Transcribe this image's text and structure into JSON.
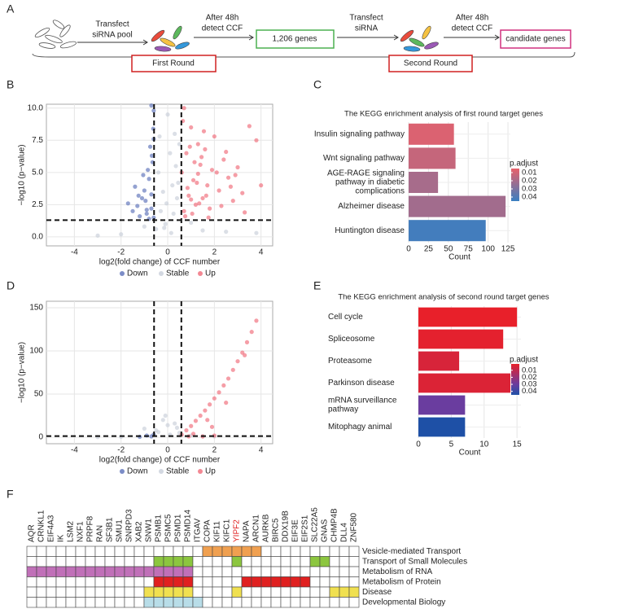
{
  "panel_labels": [
    "A",
    "B",
    "C",
    "D",
    "E",
    "F"
  ],
  "workflow": {
    "step1": [
      "Transfect",
      "siRNA pool"
    ],
    "step2": [
      "After 48h",
      "detect CCF"
    ],
    "genes_box": "1,206 genes",
    "step3": [
      "Transfect",
      "siRNA"
    ],
    "step4": [
      "After 48h",
      "detect CCF"
    ],
    "result_box": "candidate genes",
    "round1": "First Round",
    "round2": "Second Round"
  },
  "chart_data": [
    {
      "type": "scatter",
      "x_label": "log2(fold change) of CCF number",
      "y_label": "−log10 (p−value)",
      "xlim": [
        -5.2,
        4.5
      ],
      "ylim": [
        -0.7,
        10.3
      ],
      "xticks": [
        -4,
        -2,
        0,
        2,
        4
      ],
      "yticks": [
        {
          "value": 0,
          "label": "0.0"
        },
        2.5,
        {
          "value": 5,
          "label": "5.0"
        },
        7.5,
        {
          "value": 10,
          "label": "10.0"
        }
      ],
      "thresholds_x": [
        -0.585,
        0.585
      ],
      "threshold_y": 1.3,
      "grid": true,
      "series": [
        {
          "name": "Down",
          "color": "#5b70b9",
          "x": [
            -0.6,
            -0.7,
            -0.9,
            -1.1,
            -1.3,
            -0.8,
            -1.0,
            -1.5,
            -0.65,
            -0.75,
            -1.2,
            -0.95,
            -0.7,
            -1.4,
            -0.6,
            -0.85,
            -1.05,
            -0.62,
            -0.68,
            -0.9,
            -1.7,
            -0.7,
            -0.6,
            -0.8,
            -1.25
          ],
          "values": [
            1.5,
            2.2,
            1.8,
            3.0,
            2.4,
            4.5,
            3.6,
            2.0,
            5.8,
            7.0,
            1.6,
            2.8,
            3.3,
            3.9,
            9.8,
            5.2,
            4.8,
            8.4,
            6.3,
            2.1,
            2.6,
            10.2,
            7.6,
            1.4,
            3.2
          ]
        },
        {
          "name": "Stable",
          "color": "#c8ced9",
          "x": [
            -0.3,
            0.2,
            0.1,
            -0.1,
            0.4,
            -0.4,
            0.3,
            -2.0,
            1.5,
            2.5,
            -1.0,
            0.0,
            0.5,
            -0.2,
            0.15,
            -0.5,
            1.0,
            -3.0,
            0.35,
            -0.05,
            3.8,
            0.25,
            -0.35,
            0.45,
            -0.15
          ],
          "values": [
            2.0,
            4.0,
            6.5,
            1.0,
            3.0,
            5.0,
            8.0,
            0.2,
            0.5,
            0.4,
            0.8,
            9.5,
            7.2,
            3.5,
            0.3,
            0.6,
            1.1,
            0.1,
            5.5,
            2.6,
            0.3,
            1.8,
            7.8,
            4.2,
            0.7
          ]
        },
        {
          "name": "Up",
          "color": "#f06a78",
          "x": [
            0.6,
            0.7,
            0.8,
            0.9,
            1.0,
            1.1,
            1.2,
            1.3,
            1.4,
            1.5,
            1.6,
            1.7,
            1.8,
            1.9,
            2.0,
            2.2,
            2.4,
            2.6,
            2.8,
            3.0,
            3.2,
            3.5,
            3.8,
            4.0,
            0.65,
            0.75,
            0.85,
            0.95,
            1.05,
            1.15,
            1.25,
            1.35,
            1.45,
            1.55,
            1.65,
            1.75,
            2.1,
            2.3,
            2.5,
            2.7,
            2.9,
            0.7,
            1.0,
            1.3,
            3.3
          ],
          "values": [
            5.0,
            2.0,
            6.5,
            3.2,
            8.5,
            4.4,
            2.5,
            7.2,
            5.6,
            3.0,
            6.8,
            4.0,
            2.2,
            5.2,
            7.8,
            3.6,
            6.0,
            4.6,
            2.8,
            5.4,
            3.4,
            8.6,
            7.5,
            4.0,
            9.0,
            1.6,
            3.8,
            7.0,
            1.8,
            5.8,
            4.2,
            2.6,
            6.2,
            8.2,
            3.2,
            1.5,
            5.0,
            2.4,
            6.6,
            3.9,
            4.8,
            10.0,
            2.9,
            4.9,
            1.9
          ]
        }
      ]
    },
    {
      "type": "bar",
      "title": "The KEGG enrichment analysis of first round target genes",
      "categories": [
        [
          "Insulin signaling pathway"
        ],
        [
          "Wnt signaling pathway"
        ],
        [
          "AGE-RAGE signaling",
          "pathway in diabetic",
          "complications"
        ],
        [
          "Alzheimer disease"
        ],
        [
          "Huntington disease"
        ]
      ],
      "values": [
        57,
        59,
        37,
        122,
        97
      ],
      "p_adjust": [
        0.008,
        0.013,
        0.02,
        0.021,
        0.043
      ],
      "x_label": "Count",
      "xlim": [
        0,
        128
      ],
      "xticks": [
        0,
        25,
        50,
        75,
        100,
        125
      ],
      "grid": true,
      "legend_title": "p.adjust",
      "legend_ticks": [
        0.01,
        0.02,
        0.03,
        0.04
      ],
      "color_scale": [
        {
          "value": 0.005,
          "color": "#e8606a"
        },
        {
          "value": 0.045,
          "color": "#3a7fc1"
        }
      ]
    },
    {
      "type": "scatter",
      "x_label": "log2(fold change) of CCF number",
      "y_label": "−log10 (p−value)",
      "xlim": [
        -5.2,
        4.5
      ],
      "ylim": [
        -7.5,
        157.5
      ],
      "xticks": [
        -4,
        -2,
        0,
        2,
        4
      ],
      "yticks": [
        0,
        50,
        100,
        150
      ],
      "thresholds_x": [
        -0.585,
        0.585
      ],
      "threshold_y": 1.3,
      "grid": true,
      "series": [
        {
          "name": "Down",
          "color": "#5b70b9",
          "x": [
            -0.7,
            -0.9,
            -1.2,
            -0.6
          ],
          "values": [
            1,
            2,
            0.5,
            3
          ]
        },
        {
          "name": "Stable",
          "color": "#c8ced9",
          "x": [
            -1,
            -0.5,
            0,
            0.3,
            0.5,
            1,
            1.5,
            -2,
            -3,
            2,
            -0.2,
            0.1,
            -0.1,
            0.4,
            -0.4
          ],
          "values": [
            10,
            8,
            14,
            16,
            5,
            2,
            1,
            0.5,
            0.3,
            1,
            20,
            3,
            25,
            11,
            6
          ]
        },
        {
          "name": "Up",
          "color": "#f06a78",
          "x": [
            0.6,
            0.8,
            1.0,
            1.2,
            1.4,
            1.6,
            1.8,
            2.0,
            2.2,
            2.4,
            2.6,
            2.8,
            3.0,
            3.2,
            3.4,
            3.6,
            3.8,
            1.5,
            2.0,
            1.1,
            0.9,
            2.5,
            3.3,
            1.9,
            1.7
          ],
          "values": [
            3,
            8,
            13,
            19,
            25,
            31,
            38,
            45,
            52,
            60,
            68,
            78,
            88,
            98,
            110,
            122,
            135,
            1,
            2,
            4,
            1,
            40,
            95,
            12,
            20
          ]
        }
      ]
    },
    {
      "type": "bar",
      "title": "The KEGG enrichment analysis of second round target genes",
      "categories": [
        [
          "Cell cycle"
        ],
        [
          "Spliceosome"
        ],
        [
          "Proteasome"
        ],
        [
          "Parkinson disease"
        ],
        [
          "mRNA surveillance",
          "pathway"
        ],
        [
          "Mitophagy animal"
        ]
      ],
      "values": [
        15,
        12.9,
        6.2,
        14,
        7.1,
        7.1
      ],
      "p_adjust": [
        0.001,
        0.002,
        0.005,
        0.004,
        0.03,
        0.045
      ],
      "x_label": "Count",
      "xlim": [
        0,
        15.6
      ],
      "xticks": [
        0,
        5,
        10,
        15
      ],
      "grid": true,
      "legend_title": "p.adjust",
      "legend_ticks": [
        0.01,
        0.02,
        0.03,
        0.04
      ],
      "color_scale": [
        {
          "value": 0.001,
          "color": "#e8202a"
        },
        {
          "value": 0.03,
          "color": "#6a3d9f"
        },
        {
          "value": 0.045,
          "color": "#1e50a6"
        }
      ]
    },
    {
      "type": "heatmap",
      "highlighted_gene": "YIPF2",
      "highlight_color": "#e02020",
      "genes": [
        "AQR",
        "CRNKL1",
        "EIF4A3",
        "IK",
        "LSM2",
        "NXF1",
        "PRPF8",
        "RAN",
        "SF3B1",
        "SMU1",
        "SNRPD3",
        "XAB2",
        "SNW1",
        "PSMB1",
        "PSMC5",
        "PSMD1",
        "PSMD14",
        "ITGAV",
        "COPA",
        "KIF11",
        "KIFC1",
        "YIPF2",
        "NAPA",
        "ARCN1",
        "AURKB",
        "BIRC5",
        "DDX19B",
        "EIF3E",
        "EIF2S1",
        "SLC22A5",
        "GNAS",
        "CHMP4B",
        "DLL4",
        "ZNF580"
      ],
      "rows": [
        {
          "name": "Vesicle-mediated Transport",
          "color": "#f0a050",
          "values": [
            0,
            0,
            0,
            0,
            0,
            0,
            0,
            0,
            0,
            0,
            0,
            0,
            0,
            0,
            0,
            0,
            0,
            0,
            1,
            1,
            1,
            1,
            1,
            1,
            0,
            0,
            0,
            0,
            0,
            0,
            0,
            0,
            0,
            0
          ]
        },
        {
          "name": "Transport of Small Molecules",
          "color": "#8cc63f",
          "values": [
            0,
            0,
            0,
            0,
            0,
            0,
            0,
            0,
            0,
            0,
            0,
            0,
            0,
            1,
            1,
            1,
            1,
            0,
            0,
            0,
            0,
            1,
            0,
            0,
            0,
            0,
            0,
            0,
            0,
            1,
            1,
            0,
            0,
            0
          ]
        },
        {
          "name": "Metabolism of RNA",
          "color": "#c070b8",
          "values": [
            1,
            1,
            1,
            1,
            1,
            1,
            1,
            1,
            1,
            1,
            1,
            1,
            1,
            1,
            1,
            1,
            1,
            0,
            0,
            0,
            0,
            0,
            0,
            0,
            0,
            0,
            0,
            0,
            0,
            0,
            0,
            0,
            0,
            0
          ]
        },
        {
          "name": "Metabolism of Protein",
          "color": "#e02020",
          "values": [
            0,
            0,
            0,
            0,
            0,
            0,
            0,
            0,
            0,
            0,
            0,
            0,
            0,
            1,
            1,
            1,
            1,
            0,
            0,
            0,
            0,
            0,
            1,
            1,
            1,
            1,
            1,
            1,
            1,
            0,
            0,
            0,
            0,
            0
          ]
        },
        {
          "name": "Disease",
          "color": "#f0e050",
          "values": [
            0,
            0,
            0,
            0,
            0,
            0,
            0,
            0,
            0,
            0,
            0,
            0,
            1,
            1,
            1,
            1,
            1,
            0,
            0,
            0,
            0,
            1,
            0,
            0,
            0,
            0,
            0,
            0,
            0,
            0,
            0,
            1,
            1,
            1
          ]
        },
        {
          "name": "Developmental Biology",
          "color": "#b8dde8",
          "values": [
            0,
            0,
            0,
            0,
            0,
            0,
            0,
            0,
            0,
            0,
            0,
            0,
            1,
            1,
            1,
            1,
            1,
            1,
            0,
            0,
            0,
            0,
            0,
            0,
            0,
            0,
            0,
            0,
            0,
            0,
            0,
            0,
            0,
            0
          ]
        }
      ]
    }
  ]
}
